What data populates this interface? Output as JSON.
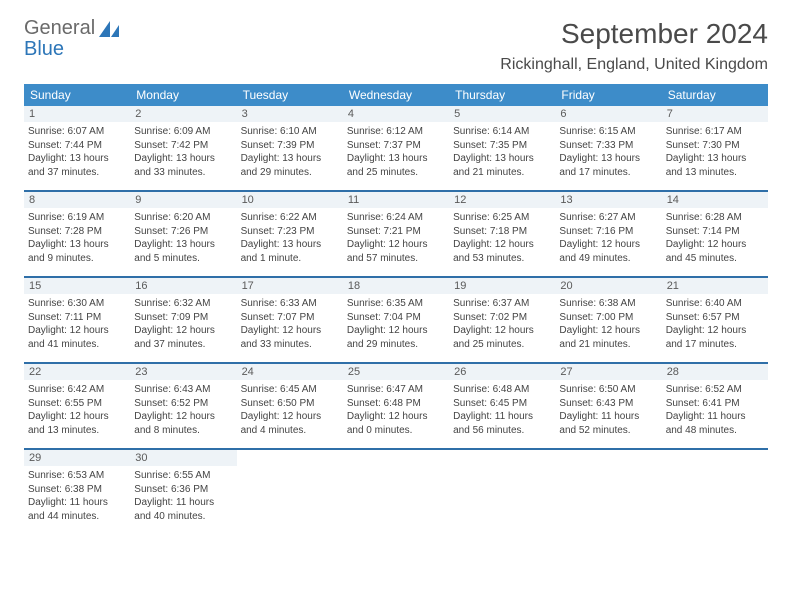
{
  "logo": {
    "line1": "General",
    "line2": "Blue"
  },
  "title": "September 2024",
  "location": "Rickinghall, England, United Kingdom",
  "colors": {
    "header_bg": "#3d8cc9",
    "daynum_bg": "#eef3f7",
    "week_border": "#2f6fa8",
    "logo_gray": "#6a6a6a",
    "logo_blue": "#2d76b8"
  },
  "day_headers": [
    "Sunday",
    "Monday",
    "Tuesday",
    "Wednesday",
    "Thursday",
    "Friday",
    "Saturday"
  ],
  "weeks": [
    [
      {
        "n": "1",
        "sr": "Sunrise: 6:07 AM",
        "ss": "Sunset: 7:44 PM",
        "dl": "Daylight: 13 hours and 37 minutes."
      },
      {
        "n": "2",
        "sr": "Sunrise: 6:09 AM",
        "ss": "Sunset: 7:42 PM",
        "dl": "Daylight: 13 hours and 33 minutes."
      },
      {
        "n": "3",
        "sr": "Sunrise: 6:10 AM",
        "ss": "Sunset: 7:39 PM",
        "dl": "Daylight: 13 hours and 29 minutes."
      },
      {
        "n": "4",
        "sr": "Sunrise: 6:12 AM",
        "ss": "Sunset: 7:37 PM",
        "dl": "Daylight: 13 hours and 25 minutes."
      },
      {
        "n": "5",
        "sr": "Sunrise: 6:14 AM",
        "ss": "Sunset: 7:35 PM",
        "dl": "Daylight: 13 hours and 21 minutes."
      },
      {
        "n": "6",
        "sr": "Sunrise: 6:15 AM",
        "ss": "Sunset: 7:33 PM",
        "dl": "Daylight: 13 hours and 17 minutes."
      },
      {
        "n": "7",
        "sr": "Sunrise: 6:17 AM",
        "ss": "Sunset: 7:30 PM",
        "dl": "Daylight: 13 hours and 13 minutes."
      }
    ],
    [
      {
        "n": "8",
        "sr": "Sunrise: 6:19 AM",
        "ss": "Sunset: 7:28 PM",
        "dl": "Daylight: 13 hours and 9 minutes."
      },
      {
        "n": "9",
        "sr": "Sunrise: 6:20 AM",
        "ss": "Sunset: 7:26 PM",
        "dl": "Daylight: 13 hours and 5 minutes."
      },
      {
        "n": "10",
        "sr": "Sunrise: 6:22 AM",
        "ss": "Sunset: 7:23 PM",
        "dl": "Daylight: 13 hours and 1 minute."
      },
      {
        "n": "11",
        "sr": "Sunrise: 6:24 AM",
        "ss": "Sunset: 7:21 PM",
        "dl": "Daylight: 12 hours and 57 minutes."
      },
      {
        "n": "12",
        "sr": "Sunrise: 6:25 AM",
        "ss": "Sunset: 7:18 PM",
        "dl": "Daylight: 12 hours and 53 minutes."
      },
      {
        "n": "13",
        "sr": "Sunrise: 6:27 AM",
        "ss": "Sunset: 7:16 PM",
        "dl": "Daylight: 12 hours and 49 minutes."
      },
      {
        "n": "14",
        "sr": "Sunrise: 6:28 AM",
        "ss": "Sunset: 7:14 PM",
        "dl": "Daylight: 12 hours and 45 minutes."
      }
    ],
    [
      {
        "n": "15",
        "sr": "Sunrise: 6:30 AM",
        "ss": "Sunset: 7:11 PM",
        "dl": "Daylight: 12 hours and 41 minutes."
      },
      {
        "n": "16",
        "sr": "Sunrise: 6:32 AM",
        "ss": "Sunset: 7:09 PM",
        "dl": "Daylight: 12 hours and 37 minutes."
      },
      {
        "n": "17",
        "sr": "Sunrise: 6:33 AM",
        "ss": "Sunset: 7:07 PM",
        "dl": "Daylight: 12 hours and 33 minutes."
      },
      {
        "n": "18",
        "sr": "Sunrise: 6:35 AM",
        "ss": "Sunset: 7:04 PM",
        "dl": "Daylight: 12 hours and 29 minutes."
      },
      {
        "n": "19",
        "sr": "Sunrise: 6:37 AM",
        "ss": "Sunset: 7:02 PM",
        "dl": "Daylight: 12 hours and 25 minutes."
      },
      {
        "n": "20",
        "sr": "Sunrise: 6:38 AM",
        "ss": "Sunset: 7:00 PM",
        "dl": "Daylight: 12 hours and 21 minutes."
      },
      {
        "n": "21",
        "sr": "Sunrise: 6:40 AM",
        "ss": "Sunset: 6:57 PM",
        "dl": "Daylight: 12 hours and 17 minutes."
      }
    ],
    [
      {
        "n": "22",
        "sr": "Sunrise: 6:42 AM",
        "ss": "Sunset: 6:55 PM",
        "dl": "Daylight: 12 hours and 13 minutes."
      },
      {
        "n": "23",
        "sr": "Sunrise: 6:43 AM",
        "ss": "Sunset: 6:52 PM",
        "dl": "Daylight: 12 hours and 8 minutes."
      },
      {
        "n": "24",
        "sr": "Sunrise: 6:45 AM",
        "ss": "Sunset: 6:50 PM",
        "dl": "Daylight: 12 hours and 4 minutes."
      },
      {
        "n": "25",
        "sr": "Sunrise: 6:47 AM",
        "ss": "Sunset: 6:48 PM",
        "dl": "Daylight: 12 hours and 0 minutes."
      },
      {
        "n": "26",
        "sr": "Sunrise: 6:48 AM",
        "ss": "Sunset: 6:45 PM",
        "dl": "Daylight: 11 hours and 56 minutes."
      },
      {
        "n": "27",
        "sr": "Sunrise: 6:50 AM",
        "ss": "Sunset: 6:43 PM",
        "dl": "Daylight: 11 hours and 52 minutes."
      },
      {
        "n": "28",
        "sr": "Sunrise: 6:52 AM",
        "ss": "Sunset: 6:41 PM",
        "dl": "Daylight: 11 hours and 48 minutes."
      }
    ],
    [
      {
        "n": "29",
        "sr": "Sunrise: 6:53 AM",
        "ss": "Sunset: 6:38 PM",
        "dl": "Daylight: 11 hours and 44 minutes."
      },
      {
        "n": "30",
        "sr": "Sunrise: 6:55 AM",
        "ss": "Sunset: 6:36 PM",
        "dl": "Daylight: 11 hours and 40 minutes."
      },
      null,
      null,
      null,
      null,
      null
    ]
  ]
}
